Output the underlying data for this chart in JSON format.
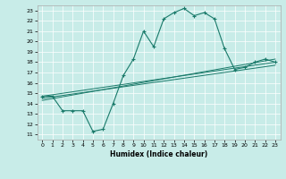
{
  "title": "",
  "xlabel": "Humidex (Indice chaleur)",
  "bg_color": "#c8ece8",
  "line_color": "#1a7a6a",
  "xlim": [
    -0.5,
    23.5
  ],
  "ylim": [
    10.5,
    23.5
  ],
  "xticks": [
    0,
    1,
    2,
    3,
    4,
    5,
    6,
    7,
    8,
    9,
    10,
    11,
    12,
    13,
    14,
    15,
    16,
    17,
    18,
    19,
    20,
    21,
    22,
    23
  ],
  "yticks": [
    11,
    12,
    13,
    14,
    15,
    16,
    17,
    18,
    19,
    20,
    21,
    22,
    23
  ],
  "main_line": {
    "x": [
      0,
      1,
      2,
      3,
      4,
      5,
      6,
      7,
      8,
      9,
      10,
      11,
      12,
      13,
      14,
      15,
      16,
      17,
      18,
      19,
      20,
      21,
      22,
      23
    ],
    "y": [
      14.7,
      14.7,
      13.3,
      13.3,
      13.3,
      11.3,
      11.5,
      14.0,
      16.7,
      18.3,
      21.0,
      19.5,
      22.2,
      22.8,
      23.2,
      22.5,
      22.8,
      22.2,
      19.3,
      17.3,
      17.5,
      18.0,
      18.3,
      18.0
    ]
  },
  "reg_line1": {
    "x": [
      0,
      23
    ],
    "y": [
      14.7,
      18.0
    ]
  },
  "reg_line2": {
    "x": [
      0,
      23
    ],
    "y": [
      14.5,
      17.7
    ]
  },
  "reg_line3": {
    "x": [
      0,
      23
    ],
    "y": [
      14.3,
      18.3
    ]
  }
}
